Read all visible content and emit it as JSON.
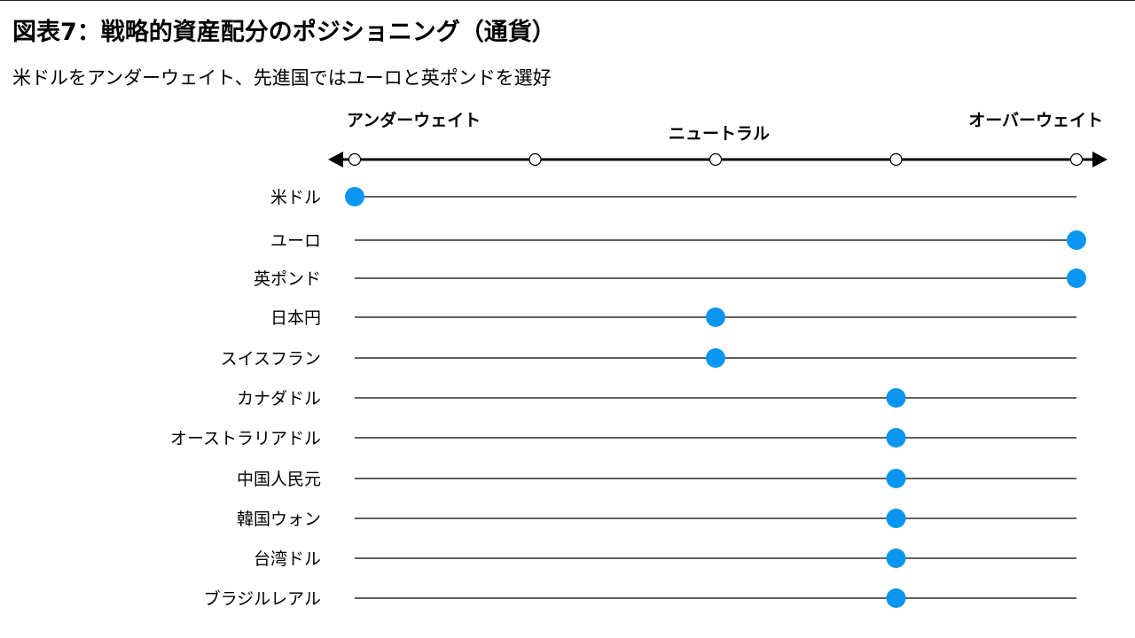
{
  "title": "図表7：戦略的資産配分のポジショニング（通貨）",
  "subtitle": "米ドルをアンダーウェイト、先進国ではユーロと英ポンドを選好",
  "colors": {
    "marker": "#0a96f0",
    "axis": "#000000",
    "line": "#000000",
    "tick_fill": "#ffffff"
  },
  "chart_data": {
    "type": "scatter",
    "scale_labels": [
      {
        "label": "アンダーウェイト",
        "position": 1
      },
      {
        "label": "ニュートラル",
        "position": 3
      },
      {
        "label": "オーバーウェイト",
        "position": 5
      }
    ],
    "xlim": [
      1,
      5
    ],
    "ticks": [
      1,
      2,
      3,
      4,
      5
    ],
    "categories": [
      "米ドル",
      "ユーロ",
      "英ポンド",
      "日本円",
      "スイスフラン",
      "カナダドル",
      "オーストラリアドル",
      "中国人民元",
      "韓国ウォン",
      "台湾ドル",
      "ブラジルレアル"
    ],
    "values": [
      1,
      5,
      5,
      3,
      3,
      4,
      4,
      4,
      4,
      4,
      4
    ]
  }
}
